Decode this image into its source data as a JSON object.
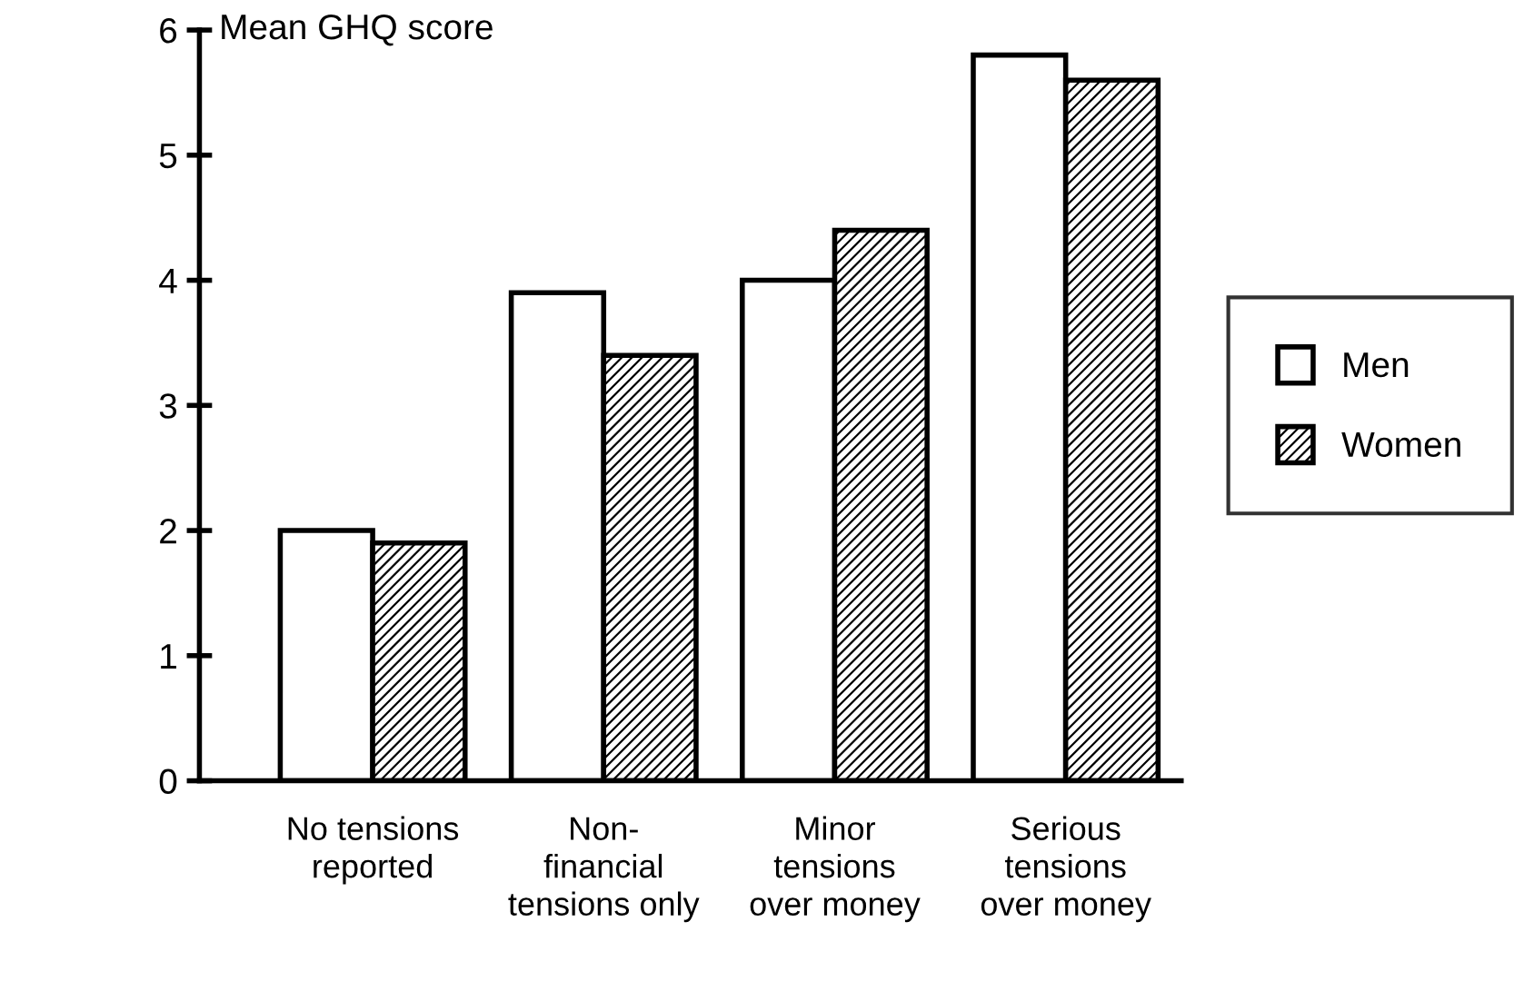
{
  "chart_data": {
    "type": "bar",
    "ylabel": "Mean GHQ score",
    "categories": [
      "No tensions\nreported",
      "Non-\nfinancial\ntensions only",
      "Minor\ntensions\nover money",
      "Serious\ntensions\nover money"
    ],
    "series": [
      {
        "name": "Men",
        "color": "#ffffff",
        "values": [
          2.0,
          3.9,
          4.0,
          5.8
        ]
      },
      {
        "name": "Women",
        "color": "#000000",
        "values": [
          1.9,
          3.4,
          4.4,
          5.6
        ]
      }
    ],
    "ylim": [
      0,
      6
    ],
    "yticks": [
      0,
      1,
      2,
      3,
      4,
      5,
      6
    ],
    "grid": false,
    "legend": "right"
  }
}
